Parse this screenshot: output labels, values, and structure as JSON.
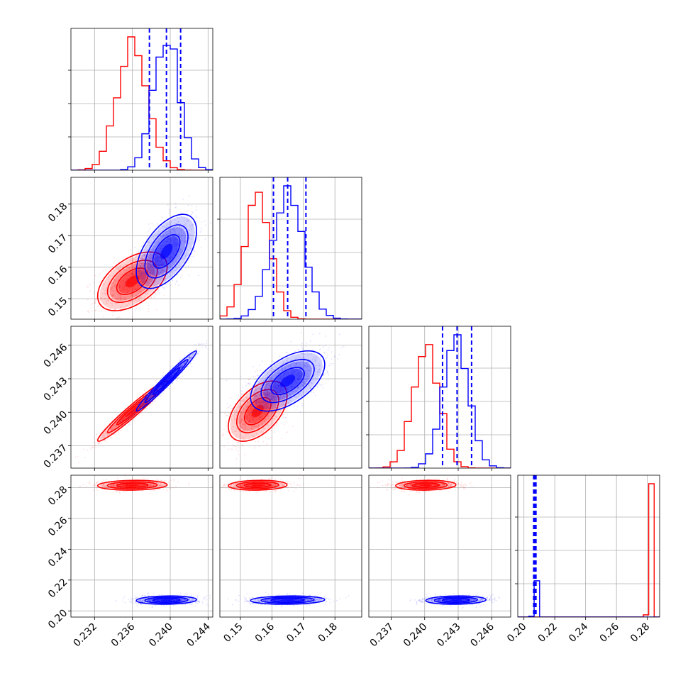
{
  "chart_data": {
    "type": "corner",
    "grid": true,
    "colors": {
      "series_a": "#0000ff",
      "series_b": "#ff0000"
    },
    "params": [
      {
        "ticks": [
          "0.232",
          "0.236",
          "0.240",
          "0.244"
        ],
        "range": [
          0.2295,
          0.2445
        ],
        "series_a": {
          "mean": 0.2396,
          "sd": 0.0013
        },
        "series_b": {
          "mean": 0.236,
          "sd": 0.0015
        },
        "quantiles": [
          0.2378,
          0.2396,
          0.2411
        ]
      },
      {
        "ticks": [
          "0.15",
          "0.16",
          "0.17",
          "0.18"
        ],
        "range": [
          0.1435,
          0.1885
        ],
        "series_a": {
          "mean": 0.165,
          "sd": 0.0048
        },
        "series_b": {
          "mean": 0.1555,
          "sd": 0.0038
        },
        "quantiles": [
          0.1605,
          0.165,
          0.1708
        ]
      },
      {
        "ticks": [
          "0.237",
          "0.240",
          "0.243",
          "0.246"
        ],
        "range": [
          0.235,
          0.2477
        ],
        "series_a": {
          "mean": 0.2428,
          "sd": 0.0011
        },
        "series_b": {
          "mean": 0.2401,
          "sd": 0.0011
        },
        "quantiles": [
          0.2416,
          0.2429,
          0.2442
        ]
      },
      {
        "ticks": [
          "0.20",
          "0.22",
          "0.24",
          "0.26",
          "0.28"
        ],
        "range": [
          0.196,
          0.288
        ],
        "series_a": {
          "mean": 0.207,
          "sd": 0.0011
        },
        "series_b": {
          "mean": 0.2815,
          "sd": 0.0013
        },
        "quantiles": [
          0.2063,
          0.207,
          0.2078
        ]
      }
    ],
    "correlations": {
      "1-0": {
        "series_a": 0.55,
        "series_b": 0.5
      },
      "2-0": {
        "series_a": 0.98,
        "series_b": 0.97
      },
      "2-1": {
        "series_a": 0.55,
        "series_b": 0.5
      },
      "3-0": {
        "series_a": 0.1,
        "series_b": 0.1
      },
      "3-1": {
        "series_a": 0.1,
        "series_b": 0.1
      },
      "3-2": {
        "series_a": 0.1,
        "series_b": 0.1
      }
    }
  }
}
